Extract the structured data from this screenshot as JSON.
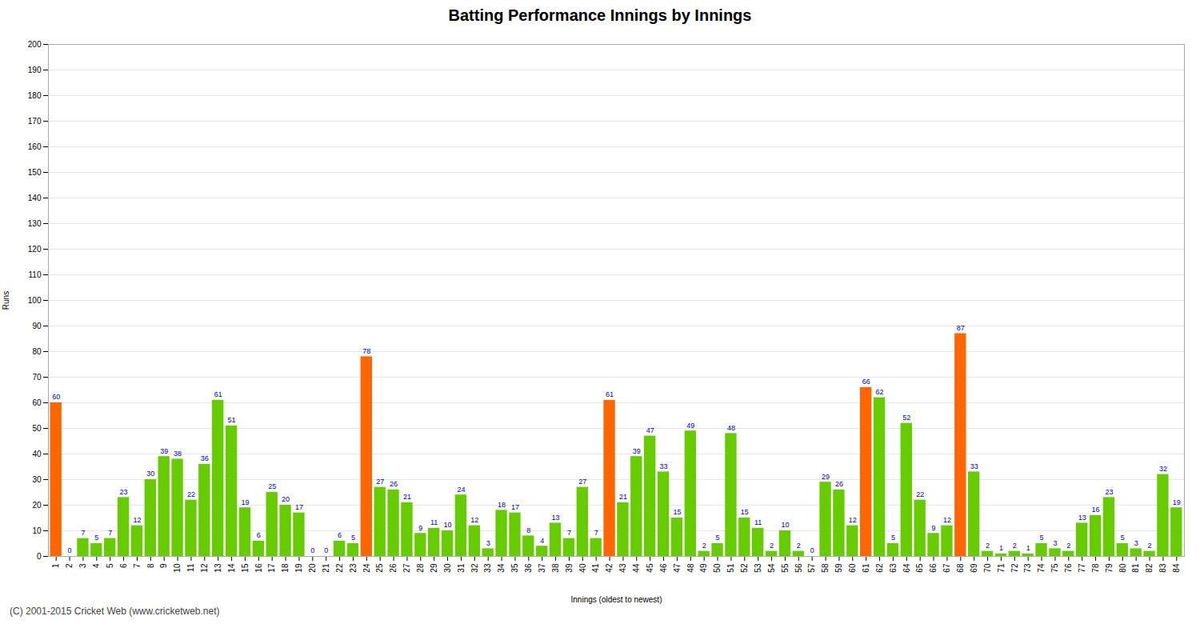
{
  "chart_data": {
    "type": "bar",
    "title": "Batting Performance Innings by Innings",
    "xlabel": "Innings (oldest to newest)",
    "ylabel": "Runs",
    "footer": "(C) 2001-2015 Cricket Web (www.cricketweb.net)",
    "categories": [
      "1",
      "2",
      "3",
      "4",
      "5",
      "6",
      "7",
      "8",
      "9",
      "10",
      "11",
      "12",
      "13",
      "14",
      "15",
      "16",
      "17",
      "18",
      "19",
      "20",
      "21",
      "22",
      "23",
      "24",
      "25",
      "26",
      "27",
      "28",
      "29",
      "30",
      "31",
      "32",
      "33",
      "34",
      "35",
      "36",
      "37",
      "38",
      "39",
      "40",
      "41",
      "42",
      "43",
      "44",
      "45",
      "46",
      "47",
      "48",
      "49",
      "50",
      "51",
      "52",
      "53",
      "54",
      "55",
      "56",
      "57",
      "58",
      "59",
      "60",
      "61",
      "62",
      "63",
      "64",
      "65",
      "66",
      "67",
      "68",
      "69",
      "70",
      "71",
      "72",
      "73",
      "74",
      "75",
      "76",
      "77",
      "78",
      "79",
      "80",
      "81",
      "82",
      "83",
      "84"
    ],
    "values": [
      60,
      0,
      7,
      5,
      7,
      23,
      12,
      30,
      39,
      38,
      22,
      36,
      61,
      51,
      19,
      6,
      25,
      20,
      17,
      0,
      0,
      6,
      5,
      78,
      27,
      26,
      21,
      9,
      11,
      10,
      24,
      12,
      3,
      18,
      17,
      8,
      4,
      13,
      7,
      27,
      7,
      61,
      21,
      39,
      47,
      33,
      15,
      49,
      2,
      5,
      48,
      15,
      11,
      2,
      10,
      2,
      0,
      29,
      26,
      12,
      66,
      62,
      5,
      52,
      22,
      9,
      12,
      87,
      33,
      2,
      1,
      2,
      1,
      5,
      3,
      2,
      13,
      16,
      23,
      5,
      3,
      2,
      32,
      19
    ],
    "colors": [
      "#ff6600",
      "#66cc00",
      "#66cc00",
      "#66cc00",
      "#66cc00",
      "#66cc00",
      "#66cc00",
      "#66cc00",
      "#66cc00",
      "#66cc00",
      "#66cc00",
      "#66cc00",
      "#66cc00",
      "#66cc00",
      "#66cc00",
      "#66cc00",
      "#66cc00",
      "#66cc00",
      "#66cc00",
      "#66cc00",
      "#66cc00",
      "#66cc00",
      "#66cc00",
      "#ff6600",
      "#66cc00",
      "#66cc00",
      "#66cc00",
      "#66cc00",
      "#66cc00",
      "#66cc00",
      "#66cc00",
      "#66cc00",
      "#66cc00",
      "#66cc00",
      "#66cc00",
      "#66cc00",
      "#66cc00",
      "#66cc00",
      "#66cc00",
      "#66cc00",
      "#66cc00",
      "#ff6600",
      "#66cc00",
      "#66cc00",
      "#66cc00",
      "#66cc00",
      "#66cc00",
      "#66cc00",
      "#66cc00",
      "#66cc00",
      "#66cc00",
      "#66cc00",
      "#66cc00",
      "#66cc00",
      "#66cc00",
      "#66cc00",
      "#66cc00",
      "#66cc00",
      "#66cc00",
      "#66cc00",
      "#ff6600",
      "#66cc00",
      "#66cc00",
      "#66cc00",
      "#66cc00",
      "#66cc00",
      "#66cc00",
      "#ff6600",
      "#66cc00",
      "#66cc00",
      "#66cc00",
      "#66cc00",
      "#66cc00",
      "#66cc00",
      "#66cc00",
      "#66cc00",
      "#66cc00",
      "#66cc00",
      "#66cc00",
      "#66cc00",
      "#66cc00",
      "#66cc00",
      "#66cc00",
      "#66cc00"
    ],
    "ylim": [
      0,
      200
    ],
    "yticks": [
      0,
      10,
      20,
      30,
      40,
      50,
      60,
      70,
      80,
      90,
      100,
      110,
      120,
      130,
      140,
      150,
      160,
      170,
      180,
      190,
      200
    ],
    "grid": true,
    "data_labels": true
  }
}
